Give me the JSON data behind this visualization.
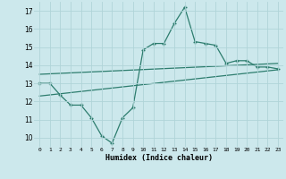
{
  "line1_x": [
    0,
    1,
    2,
    3,
    4,
    5,
    6,
    7,
    8,
    9,
    10,
    11,
    12,
    13,
    14,
    15,
    16,
    17,
    18,
    19,
    20,
    21,
    22,
    23
  ],
  "line1_y": [
    13.0,
    13.0,
    12.35,
    11.8,
    11.8,
    11.1,
    10.1,
    9.7,
    11.1,
    11.65,
    14.85,
    15.2,
    15.2,
    16.3,
    17.2,
    15.3,
    15.2,
    15.1,
    14.1,
    14.25,
    14.25,
    13.9,
    13.9,
    13.8
  ],
  "line2_x": [
    0,
    23
  ],
  "line2_y": [
    13.5,
    14.1
  ],
  "line3_x": [
    0,
    23
  ],
  "line3_y": [
    12.3,
    13.75
  ],
  "line_color": "#2d7d6e",
  "bg_color": "#cce8ec",
  "grid_color": "#b0d4d8",
  "xlabel": "Humidex (Indice chaleur)",
  "ylim": [
    9.5,
    17.5
  ],
  "xlim": [
    -0.5,
    23.5
  ],
  "yticks": [
    10,
    11,
    12,
    13,
    14,
    15,
    16,
    17
  ],
  "xticks": [
    0,
    1,
    2,
    3,
    4,
    5,
    6,
    7,
    8,
    9,
    10,
    11,
    12,
    13,
    14,
    15,
    16,
    17,
    18,
    19,
    20,
    21,
    22,
    23
  ],
  "xtick_labels": [
    "0",
    "1",
    "2",
    "3",
    "4",
    "5",
    "6",
    "7",
    "8",
    "9",
    "10",
    "11",
    "12",
    "13",
    "14",
    "15",
    "16",
    "17",
    "18",
    "19",
    "20",
    "21",
    "22",
    "23"
  ]
}
